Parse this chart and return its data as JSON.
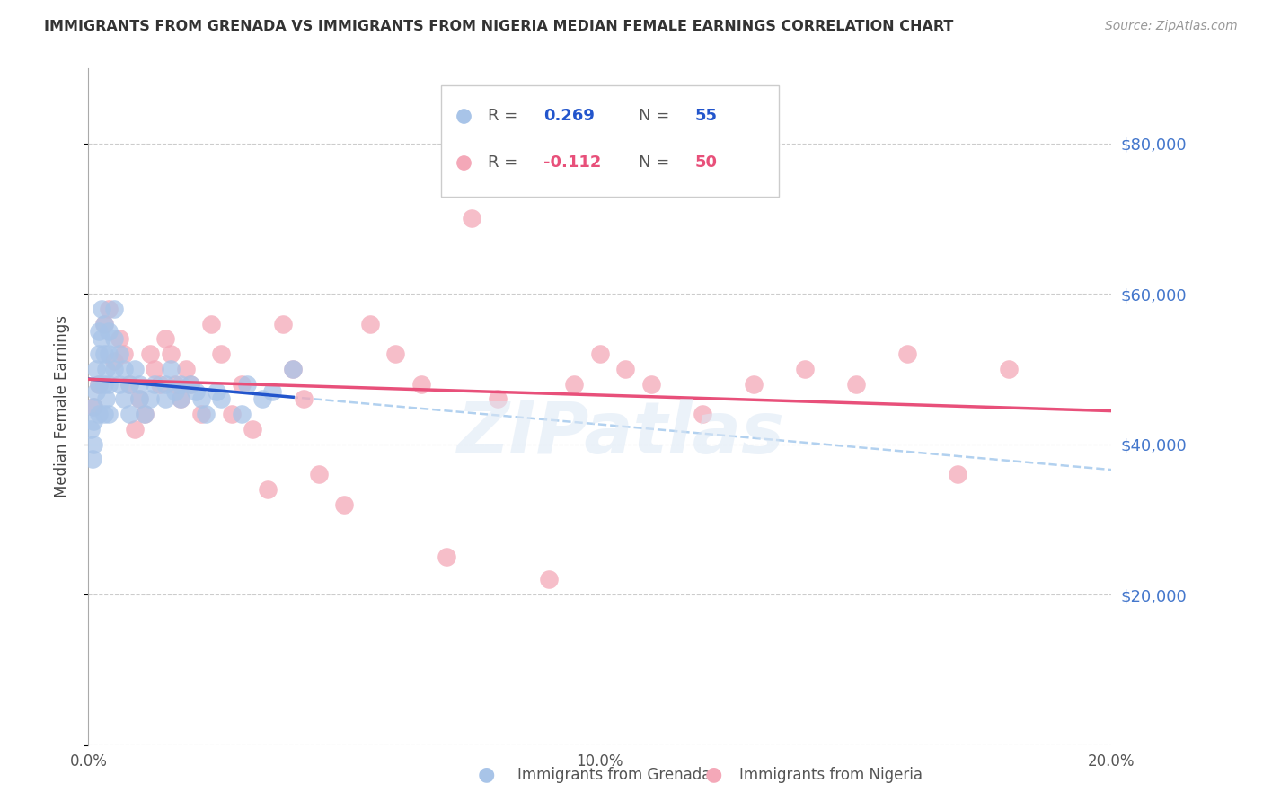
{
  "title": "IMMIGRANTS FROM GRENADA VS IMMIGRANTS FROM NIGERIA MEDIAN FEMALE EARNINGS CORRELATION CHART",
  "source": "Source: ZipAtlas.com",
  "ylabel": "Median Female Earnings",
  "xlim": [
    0,
    0.2
  ],
  "ylim": [
    0,
    90000
  ],
  "yticks": [
    0,
    20000,
    40000,
    60000,
    80000
  ],
  "ytick_labels": [
    "",
    "$20,000",
    "$40,000",
    "$60,000",
    "$80,000"
  ],
  "xticks": [
    0.0,
    0.05,
    0.1,
    0.15,
    0.2
  ],
  "xtick_labels": [
    "0.0%",
    "",
    "10.0%",
    "",
    "20.0%"
  ],
  "legend_labels": [
    "Immigrants from Grenada",
    "Immigrants from Nigeria"
  ],
  "grenada_color": "#a8c4e8",
  "nigeria_color": "#f4a8b8",
  "grenada_line_color": "#2255cc",
  "nigeria_line_color": "#e8507a",
  "dashed_line_color": "#aaccee",
  "background_color": "#ffffff",
  "watermark": "ZIPatlas",
  "grenada_x": [
    0.0005,
    0.0008,
    0.001,
    0.001,
    0.001,
    0.0015,
    0.0015,
    0.002,
    0.002,
    0.002,
    0.002,
    0.0025,
    0.0025,
    0.003,
    0.003,
    0.003,
    0.003,
    0.0035,
    0.0035,
    0.004,
    0.004,
    0.004,
    0.004,
    0.005,
    0.005,
    0.005,
    0.006,
    0.006,
    0.007,
    0.007,
    0.008,
    0.008,
    0.009,
    0.01,
    0.01,
    0.011,
    0.012,
    0.013,
    0.015,
    0.015,
    0.016,
    0.017,
    0.018,
    0.018,
    0.02,
    0.021,
    0.022,
    0.023,
    0.025,
    0.026,
    0.03,
    0.031,
    0.034,
    0.036,
    0.04
  ],
  "grenada_y": [
    42000,
    38000,
    45000,
    43000,
    40000,
    50000,
    47000,
    55000,
    52000,
    48000,
    44000,
    58000,
    54000,
    56000,
    52000,
    48000,
    44000,
    50000,
    46000,
    55000,
    52000,
    48000,
    44000,
    58000,
    54000,
    50000,
    52000,
    48000,
    50000,
    46000,
    48000,
    44000,
    50000,
    46000,
    48000,
    44000,
    46000,
    48000,
    46000,
    48000,
    50000,
    47000,
    46000,
    48000,
    48000,
    47000,
    46000,
    44000,
    47000,
    46000,
    44000,
    48000,
    46000,
    47000,
    50000
  ],
  "nigeria_x": [
    0.001,
    0.002,
    0.003,
    0.004,
    0.005,
    0.006,
    0.007,
    0.008,
    0.009,
    0.01,
    0.011,
    0.012,
    0.013,
    0.014,
    0.015,
    0.016,
    0.017,
    0.018,
    0.019,
    0.02,
    0.022,
    0.024,
    0.026,
    0.028,
    0.03,
    0.032,
    0.035,
    0.038,
    0.04,
    0.042,
    0.045,
    0.05,
    0.055,
    0.06,
    0.065,
    0.07,
    0.075,
    0.08,
    0.09,
    0.095,
    0.1,
    0.105,
    0.11,
    0.12,
    0.13,
    0.14,
    0.15,
    0.16,
    0.17,
    0.18
  ],
  "nigeria_y": [
    45000,
    48000,
    56000,
    58000,
    51000,
    54000,
    52000,
    48000,
    42000,
    46000,
    44000,
    52000,
    50000,
    48000,
    54000,
    52000,
    48000,
    46000,
    50000,
    48000,
    44000,
    56000,
    52000,
    44000,
    48000,
    42000,
    34000,
    56000,
    50000,
    46000,
    36000,
    32000,
    56000,
    52000,
    48000,
    25000,
    70000,
    46000,
    22000,
    48000,
    52000,
    50000,
    48000,
    44000,
    48000,
    50000,
    48000,
    52000,
    36000,
    50000
  ]
}
